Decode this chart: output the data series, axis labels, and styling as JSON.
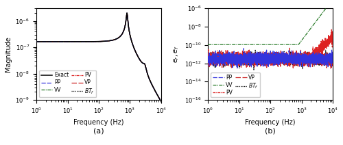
{
  "freq_min": 1.0,
  "freq_max": 10000.0,
  "n_points": 3000,
  "bode_ylim_lo": 1e-09,
  "bode_ylim_hi": 3e-06,
  "error_ylim_lo": 1e-16,
  "error_ylim_hi": 1e-06,
  "xlabel": "Frequency (Hz)",
  "ylabel_bode": "Magnitude",
  "ylabel_error": "$e_r, e_f$",
  "label_a": "(a)",
  "label_b": "(b)",
  "color_exact": "#000000",
  "color_PP": "#3333dd",
  "color_VV": "#227722",
  "color_PV": "#dd2222",
  "color_VP": "#cc2222",
  "color_BTf": "#111111",
  "bode_peak_freq": 800.0,
  "bode_peak_Q": 12.0,
  "bode_baseline": 1.3e-07,
  "bode_secondary_freq": 3000.0,
  "error_base_PP": 3e-12,
  "error_base_PV": 3e-12,
  "error_base_VP": 3e-12,
  "error_base_BTf": 3e-12,
  "error_VV_flat": 1.1e-10,
  "error_VV_rise_freq": 800.0
}
